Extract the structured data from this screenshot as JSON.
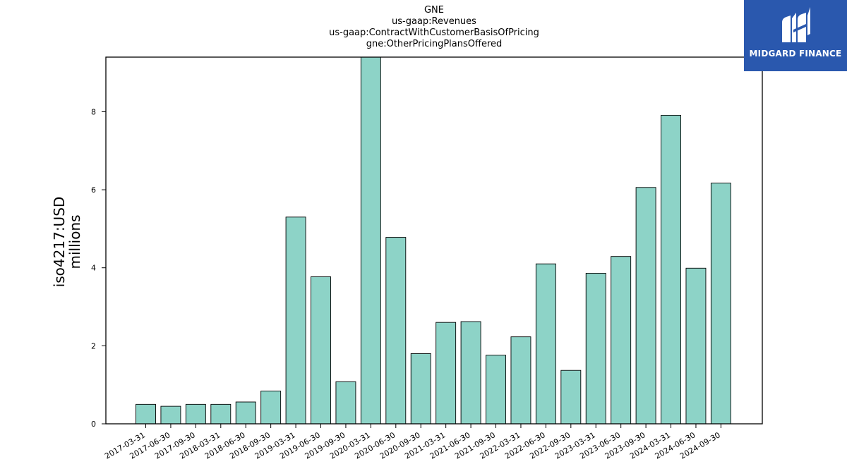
{
  "titles": [
    "GNE",
    "us-gaap:Revenues",
    "us-gaap:ContractWithCustomerBasisOfPricing",
    "gne:OtherPricingPlansOffered"
  ],
  "logo": {
    "text": "MIDGARD FINANCE",
    "icon": "midgard-finance-logo-icon",
    "background": "#2a58ae"
  },
  "chart_data": {
    "type": "bar",
    "title": "GNE\nus-gaap:Revenues\nus-gaap:ContractWithCustomerBasisOfPricing\ngne:OtherPricingPlansOffered",
    "ylabel": "iso4217:USD\nmillions",
    "xlabel": "",
    "ylim": [
      0,
      9.4
    ],
    "yticks": [
      0,
      2,
      4,
      6,
      8
    ],
    "grid": false,
    "bar_color": "#8dd3c7",
    "bar_edge_color": "#000000",
    "categories": [
      "2017-03-31",
      "2017-06-30",
      "2017-09-30",
      "2018-03-31",
      "2018-06-30",
      "2018-09-30",
      "2019-03-31",
      "2019-06-30",
      "2019-09-30",
      "2020-03-31",
      "2020-06-30",
      "2020-09-30",
      "2021-03-31",
      "2021-06-30",
      "2021-09-30",
      "2022-03-31",
      "2022-06-30",
      "2022-09-30",
      "2023-03-31",
      "2023-06-30",
      "2023-09-30",
      "2024-03-31",
      "2024-06-30",
      "2024-09-30"
    ],
    "values": [
      0.5,
      0.45,
      0.5,
      0.5,
      0.56,
      0.84,
      5.3,
      3.77,
      1.08,
      9.4,
      4.78,
      1.8,
      2.6,
      2.62,
      1.76,
      2.23,
      4.1,
      1.37,
      3.86,
      4.29,
      6.06,
      7.91,
      3.99,
      6.17
    ]
  }
}
